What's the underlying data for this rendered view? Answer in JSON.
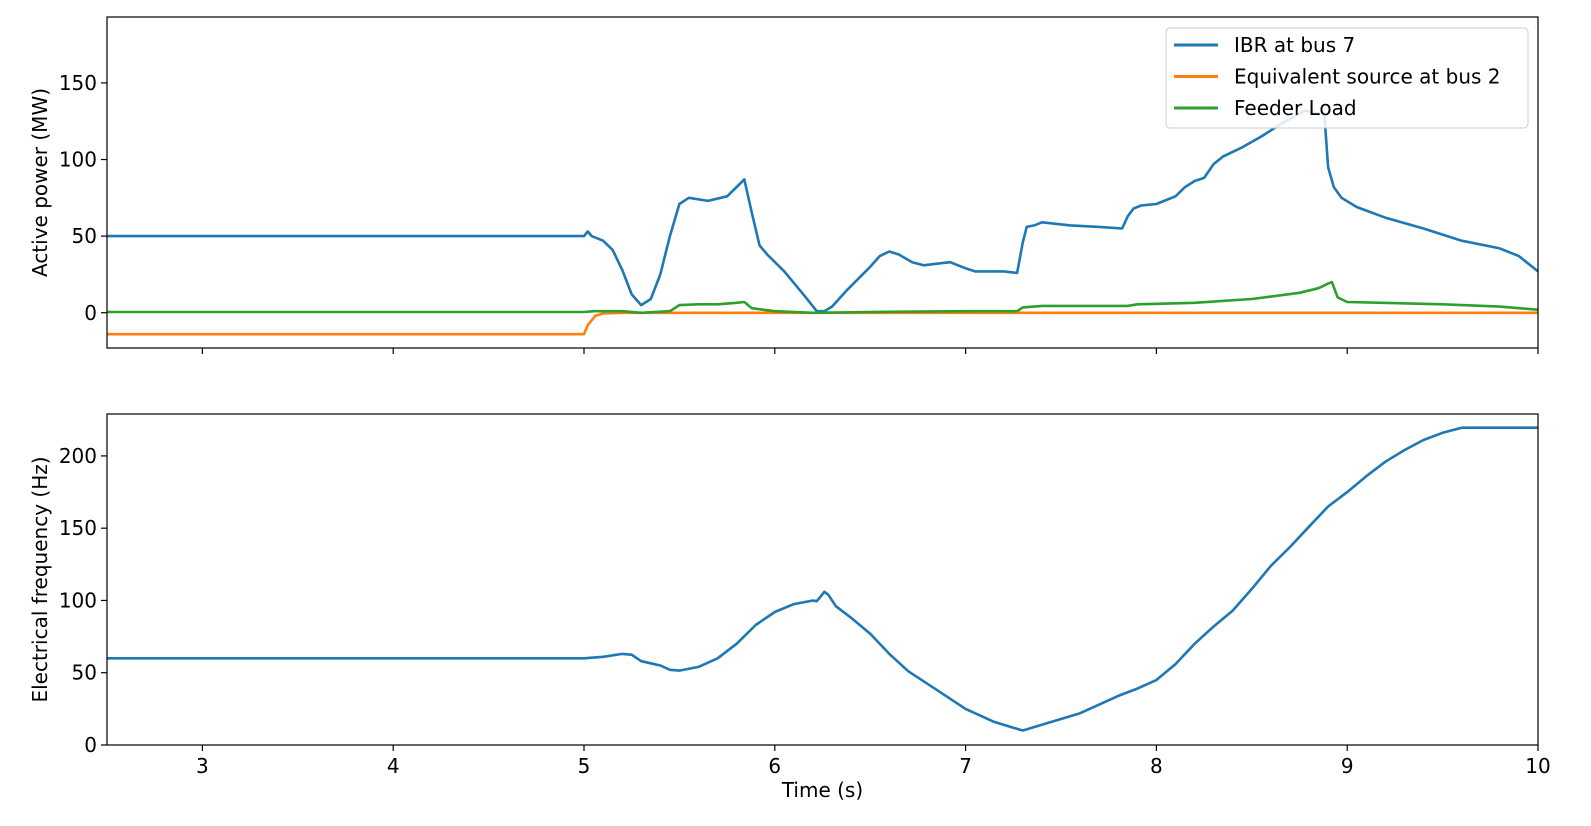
{
  "chart_data": [
    {
      "type": "line",
      "title": "",
      "xlabel": "",
      "ylabel": "Active power (MW)",
      "xlim": [
        2.5,
        10
      ],
      "ylim": [
        -23,
        193
      ],
      "xticks": [
        3,
        4,
        5,
        6,
        7,
        8,
        9,
        10
      ],
      "yticks": [
        0,
        50,
        100,
        150
      ],
      "xtick_labels_visible": false,
      "grid": false,
      "legend_position": "top-right",
      "series": [
        {
          "name": "IBR at bus 7",
          "color": "#1f77b4",
          "points": [
            [
              2.5,
              50
            ],
            [
              5.0,
              50
            ],
            [
              5.02,
              53
            ],
            [
              5.04,
              50
            ],
            [
              5.1,
              47
            ],
            [
              5.15,
              41
            ],
            [
              5.2,
              28
            ],
            [
              5.25,
              12
            ],
            [
              5.3,
              5
            ],
            [
              5.35,
              9
            ],
            [
              5.4,
              25
            ],
            [
              5.45,
              50
            ],
            [
              5.5,
              71
            ],
            [
              5.55,
              75
            ],
            [
              5.65,
              73
            ],
            [
              5.75,
              76
            ],
            [
              5.8,
              82
            ],
            [
              5.84,
              87
            ],
            [
              5.88,
              65
            ],
            [
              5.92,
              44
            ],
            [
              5.96,
              38
            ],
            [
              6.05,
              27
            ],
            [
              6.15,
              12
            ],
            [
              6.22,
              1
            ],
            [
              6.26,
              1
            ],
            [
              6.3,
              4
            ],
            [
              6.38,
              15
            ],
            [
              6.5,
              30
            ],
            [
              6.55,
              37
            ],
            [
              6.6,
              40
            ],
            [
              6.65,
              38
            ],
            [
              6.72,
              33
            ],
            [
              6.78,
              31
            ],
            [
              6.85,
              32
            ],
            [
              6.92,
              33
            ],
            [
              6.96,
              31
            ],
            [
              7.0,
              29
            ],
            [
              7.05,
              27
            ],
            [
              7.1,
              27
            ],
            [
              7.2,
              27
            ],
            [
              7.27,
              26
            ],
            [
              7.3,
              46
            ],
            [
              7.32,
              56
            ],
            [
              7.36,
              57
            ],
            [
              7.4,
              59
            ],
            [
              7.55,
              57
            ],
            [
              7.7,
              56
            ],
            [
              7.82,
              55
            ],
            [
              7.85,
              63
            ],
            [
              7.88,
              68
            ],
            [
              7.92,
              70
            ],
            [
              8.0,
              71
            ],
            [
              8.1,
              76
            ],
            [
              8.15,
              82
            ],
            [
              8.2,
              86
            ],
            [
              8.25,
              88
            ],
            [
              8.3,
              97
            ],
            [
              8.35,
              102
            ],
            [
              8.45,
              108
            ],
            [
              8.55,
              115
            ],
            [
              8.65,
              123
            ],
            [
              8.72,
              128
            ],
            [
              8.78,
              132
            ],
            [
              8.84,
              130
            ],
            [
              8.88,
              130
            ],
            [
              8.9,
              95
            ],
            [
              8.93,
              82
            ],
            [
              8.97,
              75
            ],
            [
              9.05,
              69
            ],
            [
              9.2,
              62
            ],
            [
              9.4,
              55
            ],
            [
              9.5,
              51
            ],
            [
              9.6,
              47
            ],
            [
              9.8,
              42
            ],
            [
              9.9,
              37
            ],
            [
              10.0,
              27
            ]
          ]
        },
        {
          "name": "Equivalent source at bus 2",
          "color": "#ff7f0e",
          "points": [
            [
              2.5,
              -14
            ],
            [
              5.0,
              -14
            ],
            [
              5.02,
              -8
            ],
            [
              5.06,
              -2
            ],
            [
              5.1,
              -0.5
            ],
            [
              5.2,
              0
            ],
            [
              10.0,
              0
            ]
          ]
        },
        {
          "name": "Feeder Load",
          "color": "#2ca02c",
          "points": [
            [
              2.5,
              0.5
            ],
            [
              5.0,
              0.5
            ],
            [
              5.05,
              1
            ],
            [
              5.2,
              1
            ],
            [
              5.3,
              0
            ],
            [
              5.45,
              1
            ],
            [
              5.5,
              5
            ],
            [
              5.6,
              5.5
            ],
            [
              5.7,
              5.5
            ],
            [
              5.8,
              6.5
            ],
            [
              5.84,
              7
            ],
            [
              5.88,
              3
            ],
            [
              6.0,
              1
            ],
            [
              6.2,
              0
            ],
            [
              6.5,
              0.5
            ],
            [
              7.0,
              1
            ],
            [
              7.27,
              1
            ],
            [
              7.3,
              3.5
            ],
            [
              7.4,
              4.5
            ],
            [
              7.85,
              4.5
            ],
            [
              7.9,
              5.5
            ],
            [
              8.2,
              6.5
            ],
            [
              8.5,
              9
            ],
            [
              8.75,
              13
            ],
            [
              8.85,
              16
            ],
            [
              8.9,
              19
            ],
            [
              8.92,
              20
            ],
            [
              8.95,
              10
            ],
            [
              9.0,
              7
            ],
            [
              9.5,
              5.5
            ],
            [
              9.8,
              4
            ],
            [
              10.0,
              2
            ]
          ]
        }
      ]
    },
    {
      "type": "line",
      "title": "",
      "xlabel": "Time (s)",
      "ylabel": "Electrical frequency (Hz)",
      "xlim": [
        2.5,
        10
      ],
      "ylim": [
        0,
        229
      ],
      "xticks": [
        3,
        4,
        5,
        6,
        7,
        8,
        9,
        10
      ],
      "yticks": [
        0,
        50,
        100,
        150,
        200
      ],
      "xtick_labels_visible": true,
      "grid": false,
      "legend_position": "none",
      "series": [
        {
          "color": "#1f77b4",
          "points": [
            [
              2.5,
              60
            ],
            [
              5.0,
              60
            ],
            [
              5.1,
              61
            ],
            [
              5.2,
              63
            ],
            [
              5.25,
              62.5
            ],
            [
              5.3,
              58
            ],
            [
              5.35,
              56.5
            ],
            [
              5.4,
              55
            ],
            [
              5.45,
              52
            ],
            [
              5.5,
              51.5
            ],
            [
              5.6,
              54
            ],
            [
              5.7,
              60
            ],
            [
              5.8,
              70
            ],
            [
              5.9,
              83
            ],
            [
              6.0,
              92
            ],
            [
              6.1,
              97.5
            ],
            [
              6.2,
              100
            ],
            [
              6.22,
              99.5
            ],
            [
              6.26,
              106
            ],
            [
              6.28,
              104
            ],
            [
              6.32,
              96
            ],
            [
              6.4,
              88
            ],
            [
              6.5,
              77
            ],
            [
              6.6,
              63
            ],
            [
              6.7,
              51
            ],
            [
              6.85,
              38
            ],
            [
              7.0,
              25
            ],
            [
              7.15,
              16
            ],
            [
              7.25,
              12
            ],
            [
              7.3,
              10
            ],
            [
              7.4,
              14
            ],
            [
              7.6,
              22
            ],
            [
              7.8,
              34
            ],
            [
              7.9,
              39
            ],
            [
              8.0,
              45
            ],
            [
              8.1,
              56
            ],
            [
              8.2,
              70
            ],
            [
              8.3,
              82
            ],
            [
              8.4,
              93
            ],
            [
              8.5,
              108
            ],
            [
              8.6,
              124
            ],
            [
              8.7,
              137
            ],
            [
              8.8,
              151
            ],
            [
              8.9,
              165
            ],
            [
              9.0,
              175
            ],
            [
              9.1,
              186
            ],
            [
              9.2,
              196
            ],
            [
              9.3,
              204
            ],
            [
              9.4,
              211
            ],
            [
              9.5,
              216
            ],
            [
              9.6,
              219.5
            ],
            [
              9.7,
              219.5
            ],
            [
              10.0,
              219.5
            ]
          ]
        }
      ]
    }
  ]
}
